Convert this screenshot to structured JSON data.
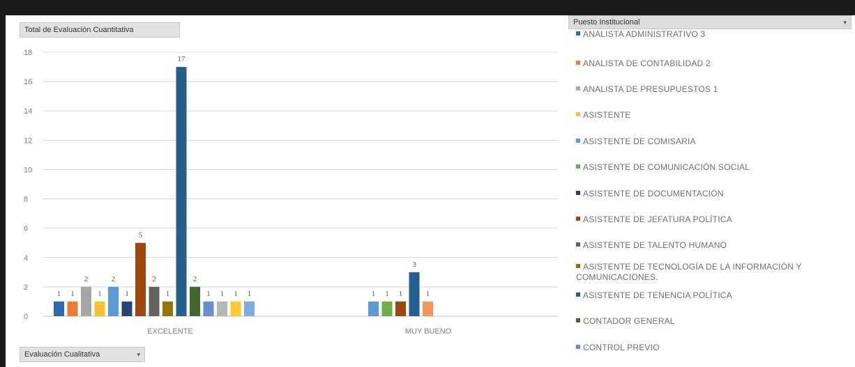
{
  "value_field_label": "Total de Evaluación Cuantitativa",
  "axis_field_label": "Evaluación Cualitativa",
  "legend_field_label": "Puesto Institucional",
  "dropdown_glyph": "▾",
  "chart_data": {
    "type": "bar",
    "title": "",
    "xlabel": "",
    "ylabel": "",
    "ylim": [
      0,
      18
    ],
    "yticks": [
      0,
      2,
      4,
      6,
      8,
      10,
      12,
      14,
      16,
      18
    ],
    "categories": [
      "EXCELENTE",
      "MUY BUENO"
    ],
    "grid": true,
    "legend_position": "right",
    "series": [
      {
        "name": "ANALISTA ADMINISTRATIVO 3",
        "color": "#2e6ab1",
        "values": [
          1,
          null
        ]
      },
      {
        "name": "ANALISTA DE CONTABILIDAD 2",
        "color": "#ee7d33",
        "values": [
          1,
          null
        ]
      },
      {
        "name": "ANALISTA DE PRESUPUESTOS 1",
        "color": "#a6a6a6",
        "values": [
          2,
          null
        ]
      },
      {
        "name": "ASISTENTE",
        "color": "#fbc12d",
        "values": [
          1,
          null
        ]
      },
      {
        "name": "ASISTENTE DE COMISARIA",
        "color": "#5a9bd6",
        "values": [
          2,
          1
        ]
      },
      {
        "name": "ASISTENTE DE COMUNICACIÓN SOCIAL",
        "color": "#6fad47",
        "values": [
          null,
          1
        ]
      },
      {
        "name": "ASISTENTE DE DOCUMENTACIÓN",
        "color": "#254478",
        "values": [
          1,
          null
        ]
      },
      {
        "name": "ASISTENTE DE JEFATURA POLÍTICA",
        "color": "#9e480e",
        "values": [
          5,
          1
        ]
      },
      {
        "name": "ASISTENTE DE TALENTO HUMANO",
        "color": "#636363",
        "values": [
          2,
          null
        ]
      },
      {
        "name": "ASISTENTE DE TECNOLOGÍA DE LA INFORMACIÓN Y\nCOMUNICACIONES.",
        "color": "#997300",
        "values": [
          1,
          null
        ]
      },
      {
        "name": "ASISTENTE DE TENENCIA POLÍTICA",
        "color": "#255e91",
        "values": [
          17,
          3
        ]
      },
      {
        "name": "CONTADOR GENERAL",
        "color": "#43682b",
        "values": [
          2,
          null
        ]
      },
      {
        "name": "CONTROL PREVIO",
        "color": "#698ed0",
        "values": [
          1,
          null
        ]
      },
      {
        "name": "",
        "color": "#f1975a",
        "values": [
          null,
          1
        ]
      },
      {
        "name": "",
        "color": "#b7b7b7",
        "values": [
          1,
          null
        ]
      },
      {
        "name": "",
        "color": "#ffcd33",
        "values": [
          1,
          null
        ]
      },
      {
        "name": "",
        "color": "#7cafdd",
        "values": [
          1,
          null
        ]
      }
    ]
  }
}
